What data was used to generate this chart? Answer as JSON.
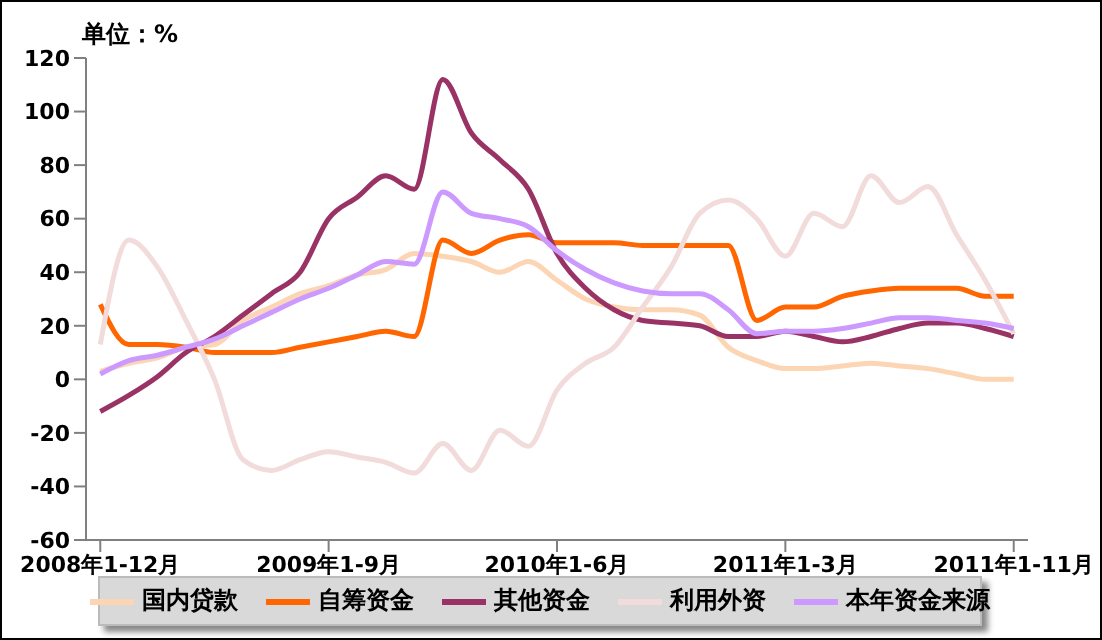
{
  "chart_data": {
    "type": "line",
    "ylabel": "单位：%",
    "categories": [
      "2008年1-12月",
      null,
      null,
      null,
      null,
      null,
      null,
      null,
      "2009年1-9月",
      null,
      null,
      null,
      null,
      null,
      null,
      null,
      "2010年1-6月",
      null,
      null,
      null,
      null,
      null,
      null,
      null,
      "2011年1-3月",
      null,
      null,
      null,
      null,
      null,
      null,
      null,
      "2011年1-11月"
    ],
    "series": [
      {
        "name": "国内贷款",
        "color": "#fcd5b4",
        "values": [
          3,
          6,
          8,
          12,
          13,
          22,
          27,
          32,
          35,
          39,
          41,
          47,
          46,
          44,
          40,
          44,
          37,
          30,
          27,
          26,
          26,
          24,
          12,
          7,
          4,
          4,
          5,
          6,
          5,
          4,
          2,
          0,
          0
        ]
      },
      {
        "name": "自筹资金",
        "color": "#ff6600",
        "values": [
          28,
          13,
          13,
          12,
          10,
          10,
          10,
          12,
          14,
          16,
          18,
          16,
          52,
          47,
          52,
          54,
          51,
          51,
          51,
          50,
          50,
          50,
          50,
          22,
          27,
          27,
          31,
          33,
          34,
          34,
          34,
          31,
          31
        ]
      },
      {
        "name": "其他资金",
        "color": "#993366",
        "values": [
          -12,
          -6,
          1,
          10,
          16,
          24,
          32,
          40,
          60,
          68,
          76,
          71,
          112,
          92,
          82,
          71,
          47,
          34,
          26,
          22,
          21,
          20,
          16,
          16,
          18,
          16,
          14,
          16,
          19,
          21,
          21,
          19,
          16
        ]
      },
      {
        "name": "利用外资",
        "color": "#f2dcdb",
        "values": [
          13,
          52,
          42,
          22,
          0,
          -30,
          -34,
          -30,
          -27,
          -29,
          -31,
          -35,
          -24,
          -34,
          -19,
          -25,
          -4,
          6,
          12,
          27,
          42,
          62,
          67,
          60,
          46,
          62,
          57,
          76,
          66,
          72,
          54,
          37,
          17
        ]
      },
      {
        "name": "本年资金来源",
        "color": "#cc99ff",
        "values": [
          2,
          7,
          9,
          12,
          15,
          20,
          25,
          30,
          34,
          39,
          44,
          43,
          70,
          62,
          60,
          57,
          48,
          41,
          36,
          33,
          32,
          32,
          26,
          17,
          18,
          18,
          19,
          21,
          23,
          23,
          22,
          21,
          19
        ]
      }
    ],
    "ylim": [
      -60,
      120
    ],
    "yticks": [
      -60,
      -40,
      -20,
      0,
      20,
      40,
      60,
      80,
      100,
      120
    ],
    "legend": "bottom",
    "line_style": "solid",
    "marker": "none"
  }
}
